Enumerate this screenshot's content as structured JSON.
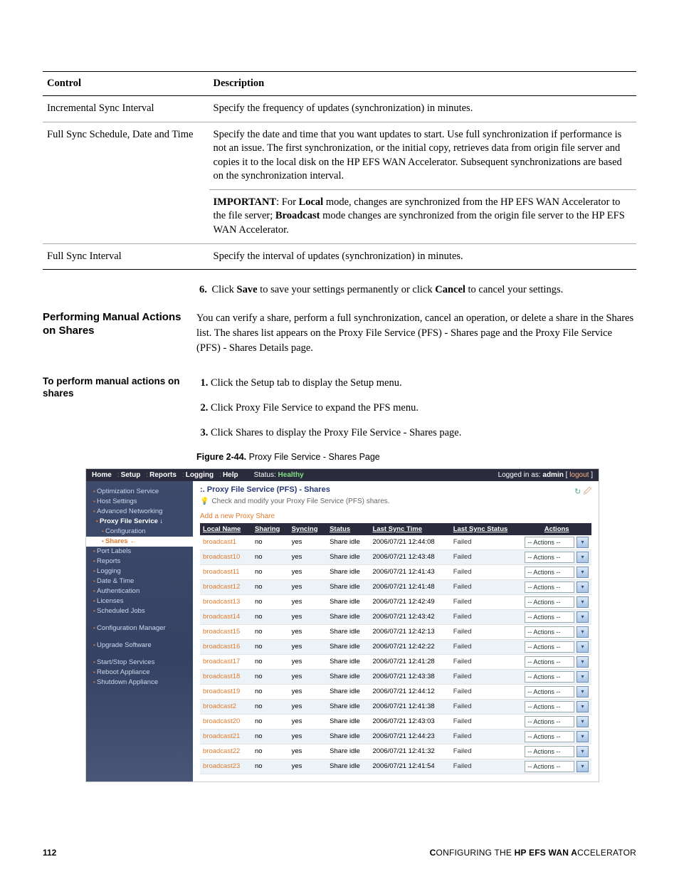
{
  "defTable": {
    "headers": {
      "control": "Control",
      "description": "Description"
    },
    "rows": [
      {
        "control": "Incremental Sync Interval",
        "desc": "Specify the frequency of updates (synchronization) in minutes."
      },
      {
        "control": "Full Sync Schedule, Date and Time",
        "desc": "Specify the date and time that you want updates to start. Use full synchronization if performance is not an issue. The first synchronization, or the initial copy, retrieves data from origin file server and copies it to the local disk on the HP EFS WAN Accelerator. Subsequent synchronizations are based on the synchronization interval.",
        "important_label": "IMPORTANT",
        "important_pre": ": For ",
        "important_b1": "Local",
        "important_mid": " mode, changes are synchronized from the HP EFS WAN Accelerator to the file server; ",
        "important_b2": "Broadcast",
        "important_post": " mode changes are synchronized from the origin file server to the HP EFS WAN Accelerator."
      },
      {
        "control": "Full Sync Interval",
        "desc": "Specify the interval of updates (synchronization) in minutes."
      }
    ]
  },
  "step6": {
    "num": "6.",
    "pre": "Click ",
    "b1": "Save",
    "mid": " to save your settings permanently or click ",
    "b2": "Cancel",
    "post": " to cancel your settings."
  },
  "section": {
    "heading": "Performing Manual Actions on Shares",
    "para": "You can verify a share, perform a full synchronization, cancel an operation, or delete a share in the Shares list. The shares list appears on the Proxy File Service (PFS) - Shares page and the Proxy File Service (PFS) - Shares Details page."
  },
  "subsection": {
    "heading": "To perform manual actions on shares",
    "steps": [
      "Click the Setup tab to display the Setup menu.",
      "Click Proxy File Service to expand the PFS menu.",
      "Click Shares to display the Proxy File Service - Shares page."
    ]
  },
  "figure": {
    "label": "Figure 2-44.",
    "text": "Proxy File Service - Shares Page"
  },
  "screenshot": {
    "topbar": {
      "tabs": [
        "Home",
        "Setup",
        "Reports",
        "Logging",
        "Help"
      ],
      "status_label": "Status:",
      "status_value": "Healthy",
      "logged_in_pre": "Logged in as: ",
      "logged_in_user": "admin",
      "logout": "logout"
    },
    "sidebar": [
      {
        "text": "Optimization Service",
        "cls": "item"
      },
      {
        "text": "Host Settings",
        "cls": "item"
      },
      {
        "text": "Advanced Networking",
        "cls": "item"
      },
      {
        "text": "Proxy File Service ↓",
        "cls": "item hl2"
      },
      {
        "text": "Configuration",
        "cls": "item sub"
      },
      {
        "text": "Shares ←",
        "cls": "item sel"
      },
      {
        "text": "Port Labels",
        "cls": "item"
      },
      {
        "text": "Reports",
        "cls": "item"
      },
      {
        "text": "Logging",
        "cls": "item"
      },
      {
        "text": "Date & Time",
        "cls": "item"
      },
      {
        "text": "Authentication",
        "cls": "item"
      },
      {
        "text": "Licenses",
        "cls": "item"
      },
      {
        "text": "Scheduled Jobs",
        "cls": "item"
      },
      {
        "text": "",
        "cls": "spacer"
      },
      {
        "text": "Configuration Manager",
        "cls": "item"
      },
      {
        "text": "",
        "cls": "spacer"
      },
      {
        "text": "Upgrade Software",
        "cls": "item"
      },
      {
        "text": "",
        "cls": "spacer"
      },
      {
        "text": "Start/Stop Services",
        "cls": "item"
      },
      {
        "text": "Reboot Appliance",
        "cls": "item"
      },
      {
        "text": "Shutdown Appliance",
        "cls": "item"
      }
    ],
    "content": {
      "title_prefix": ":.",
      "title": "Proxy File Service (PFS) - Shares",
      "icon1": "↻",
      "icon2": "🖉",
      "hint": "Check and modify your Proxy File Service (PFS) shares.",
      "addlink": "Add a new Proxy Share",
      "columns": [
        "Local Name",
        "Sharing",
        "Syncing",
        "Status",
        "Last Sync Time",
        "Last Sync Status",
        "Actions"
      ],
      "action_label": "-- Actions --",
      "rows": [
        {
          "name": "broadcast1",
          "sharing": "no",
          "syncing": "yes",
          "status": "Share idle",
          "time": "2006/07/21 12:44:08",
          "sstatus": "Failed"
        },
        {
          "name": "broadcast10",
          "sharing": "no",
          "syncing": "yes",
          "status": "Share idle",
          "time": "2006/07/21 12:43:48",
          "sstatus": "Failed"
        },
        {
          "name": "broadcast11",
          "sharing": "no",
          "syncing": "yes",
          "status": "Share idle",
          "time": "2006/07/21 12:41:43",
          "sstatus": "Failed"
        },
        {
          "name": "broadcast12",
          "sharing": "no",
          "syncing": "yes",
          "status": "Share idle",
          "time": "2006/07/21 12:41:48",
          "sstatus": "Failed"
        },
        {
          "name": "broadcast13",
          "sharing": "no",
          "syncing": "yes",
          "status": "Share idle",
          "time": "2006/07/21 12:42:49",
          "sstatus": "Failed"
        },
        {
          "name": "broadcast14",
          "sharing": "no",
          "syncing": "yes",
          "status": "Share idle",
          "time": "2006/07/21 12:43:42",
          "sstatus": "Failed"
        },
        {
          "name": "broadcast15",
          "sharing": "no",
          "syncing": "yes",
          "status": "Share idle",
          "time": "2006/07/21 12:42:13",
          "sstatus": "Failed"
        },
        {
          "name": "broadcast16",
          "sharing": "no",
          "syncing": "yes",
          "status": "Share idle",
          "time": "2006/07/21 12:42:22",
          "sstatus": "Failed"
        },
        {
          "name": "broadcast17",
          "sharing": "no",
          "syncing": "yes",
          "status": "Share idle",
          "time": "2006/07/21 12:41:28",
          "sstatus": "Failed"
        },
        {
          "name": "broadcast18",
          "sharing": "no",
          "syncing": "yes",
          "status": "Share idle",
          "time": "2006/07/21 12:43:38",
          "sstatus": "Failed"
        },
        {
          "name": "broadcast19",
          "sharing": "no",
          "syncing": "yes",
          "status": "Share idle",
          "time": "2006/07/21 12:44:12",
          "sstatus": "Failed"
        },
        {
          "name": "broadcast2",
          "sharing": "no",
          "syncing": "yes",
          "status": "Share idle",
          "time": "2006/07/21 12:41:38",
          "sstatus": "Failed"
        },
        {
          "name": "broadcast20",
          "sharing": "no",
          "syncing": "yes",
          "status": "Share idle",
          "time": "2006/07/21 12:43:03",
          "sstatus": "Failed"
        },
        {
          "name": "broadcast21",
          "sharing": "no",
          "syncing": "yes",
          "status": "Share idle",
          "time": "2006/07/21 12:44:23",
          "sstatus": "Failed"
        },
        {
          "name": "broadcast22",
          "sharing": "no",
          "syncing": "yes",
          "status": "Share idle",
          "time": "2006/07/21 12:41:32",
          "sstatus": "Failed"
        },
        {
          "name": "broadcast23",
          "sharing": "no",
          "syncing": "yes",
          "status": "Share idle",
          "time": "2006/07/21 12:41:54",
          "sstatus": "Failed"
        }
      ]
    }
  },
  "footer": {
    "page": "112",
    "text_pre": "C",
    "text": "ONFIGURING THE",
    "text_mid_b": " HP EFS WAN A",
    "text_post": "CCELERATOR"
  }
}
